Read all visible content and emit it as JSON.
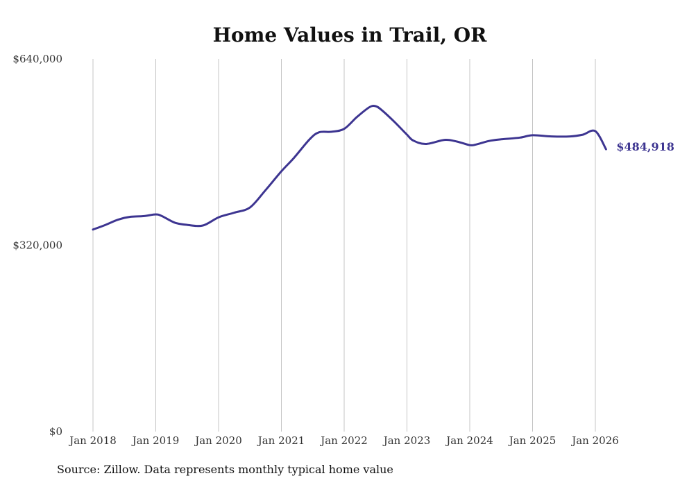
{
  "chart_data": {
    "type": "line",
    "title": "Home Values in Trail, OR",
    "xlabel": "",
    "ylabel": "",
    "ylim": [
      0,
      640000
    ],
    "y_ticks": [
      {
        "value": 0,
        "label": "$0"
      },
      {
        "value": 320000,
        "label": "$320,000"
      },
      {
        "value": 640000,
        "label": "$640,000"
      }
    ],
    "x_ticks": [
      {
        "value": 2018,
        "label": "Jan 2018"
      },
      {
        "value": 2019,
        "label": "Jan 2019"
      },
      {
        "value": 2020,
        "label": "Jan 2020"
      },
      {
        "value": 2021,
        "label": "Jan 2021"
      },
      {
        "value": 2022,
        "label": "Jan 2022"
      },
      {
        "value": 2023,
        "label": "Jan 2023"
      },
      {
        "value": 2024,
        "label": "Jan 2024"
      },
      {
        "value": 2025,
        "label": "Jan 2025"
      },
      {
        "value": 2026,
        "label": "Jan 2026"
      }
    ],
    "xlim": [
      2018,
      2026.92
    ],
    "grid": "vertical",
    "series": [
      {
        "name": "Typical home value",
        "color": "#3d3591",
        "end_label": "$484,918",
        "x": [
          2018.0,
          2018.2,
          2018.4,
          2018.6,
          2018.8,
          2019.0,
          2019.1,
          2019.3,
          2019.5,
          2019.75,
          2020.0,
          2020.25,
          2020.5,
          2020.75,
          2021.0,
          2021.2,
          2021.45,
          2021.6,
          2021.8,
          2022.0,
          2022.2,
          2022.4,
          2022.5,
          2022.6,
          2022.8,
          2023.0,
          2023.1,
          2023.3,
          2023.6,
          2023.8,
          2024.0,
          2024.1,
          2024.3,
          2024.5,
          2024.8,
          2025.0,
          2025.3,
          2025.6,
          2025.8,
          2026.0,
          2026.17
        ],
        "values": [
          347000,
          355000,
          364000,
          369000,
          370000,
          373000,
          370000,
          359000,
          355000,
          354000,
          368000,
          376000,
          385000,
          415000,
          447000,
          470000,
          502000,
          514000,
          515000,
          520000,
          540000,
          557000,
          559000,
          552000,
          532000,
          510000,
          500000,
          494000,
          501000,
          498000,
          492000,
          493000,
          499000,
          502000,
          505000,
          509000,
          507000,
          507000,
          510000,
          516000,
          484918
        ]
      }
    ]
  },
  "source": "Source: Zillow. Data represents monthly typical home value"
}
